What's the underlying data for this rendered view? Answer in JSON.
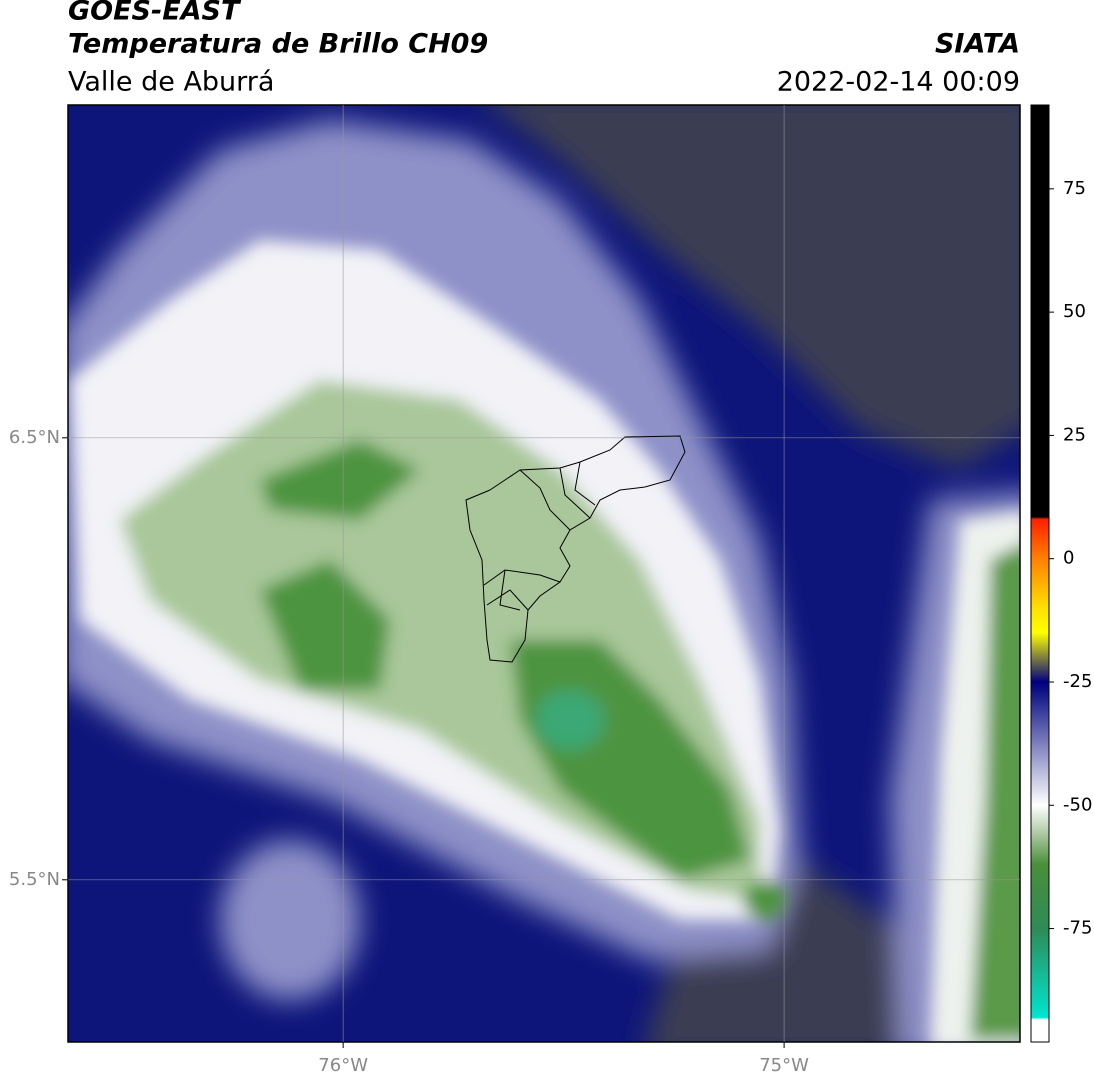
{
  "header": {
    "title": "GOES-EAST",
    "subtitle": "Temperatura de Brillo CH09",
    "region": "Valle de Aburrá",
    "source": "SIATA",
    "datetime": "2022-02-14 00:09"
  },
  "map": {
    "xlim": [
      -76.624,
      -74.465
    ],
    "ylim": [
      5.133,
      7.253
    ],
    "xticks": [
      {
        "value": -76,
        "label": "76°W"
      },
      {
        "value": -75,
        "label": "75°W"
      }
    ],
    "yticks": [
      {
        "value": 6.5,
        "label": "6.5°N"
      },
      {
        "value": 5.5,
        "label": "5.5°N"
      }
    ],
    "grid": true
  },
  "colorbar": {
    "lim": [
      -98,
      92
    ],
    "ticks": [
      75,
      50,
      25,
      0,
      -25,
      -50,
      -75
    ],
    "stops": [
      {
        "value": 92,
        "color": "#000000"
      },
      {
        "value": 8.5,
        "color": "#000000"
      },
      {
        "value": 8,
        "color": "#ff2000"
      },
      {
        "value": 0,
        "color": "#ff8000"
      },
      {
        "value": -10,
        "color": "#ffe000"
      },
      {
        "value": -15,
        "color": "#ffff00"
      },
      {
        "value": -20,
        "color": "#808040"
      },
      {
        "value": -25,
        "color": "#000080"
      },
      {
        "value": -28,
        "color": "#1a1f8c"
      },
      {
        "value": -50,
        "color": "#ffffff"
      },
      {
        "value": -55,
        "color": "#b8d0b0"
      },
      {
        "value": -62,
        "color": "#4a8f3a"
      },
      {
        "value": -75,
        "color": "#2e8b57"
      },
      {
        "value": -93,
        "color": "#00e5d0"
      },
      {
        "value": -93.5,
        "color": "#ffffff"
      },
      {
        "value": -98,
        "color": "#ffffff"
      }
    ]
  }
}
